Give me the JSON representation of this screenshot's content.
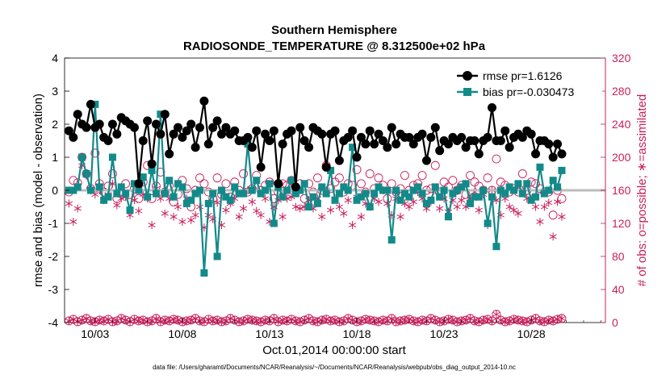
{
  "chart_data": {
    "type": "line",
    "title": "Southern Hemisphere",
    "subtitle": "RADIOSONDE_TEMPERATURE @ 8.312500e+02 hPa",
    "xlabel": "Oct.01,2014 00:00:00 start",
    "ylabel": "rmse and bias (model - observation)",
    "y2label": "# of obs: o=possible; ∗=assimilated",
    "footer": "data file: /Users/gharamti/Documents/NCAR/Reanalysis/~/Documents/NCAR/Reanalysis/webpub/obs_diag_output_2014-10.nc",
    "x_ticks": [
      "10/03",
      "10/08",
      "10/13",
      "10/18",
      "10/23",
      "10/28"
    ],
    "x_tick_days": [
      3,
      8,
      13,
      18,
      23,
      28
    ],
    "xlim": [
      1.25,
      32.25
    ],
    "ylim": [
      -4,
      4
    ],
    "y_ticks": [
      "4",
      "3",
      "2",
      "1",
      "0",
      "-1",
      "-2",
      "-3",
      "-4"
    ],
    "y2lim": [
      0,
      320
    ],
    "y2_ticks": [
      "320",
      "280",
      "240",
      "200",
      "160",
      "120",
      "80",
      "40",
      "0"
    ],
    "legend": [
      "rmse pr=1.6126",
      "bias pr=-0.030473"
    ],
    "legend_position": "top-right",
    "x_start": 1.5,
    "x_step": 0.25,
    "series": [
      {
        "name": "rmse pr=1.6126",
        "color": "#000000",
        "values": [
          1.8,
          1.6,
          2.3,
          2.0,
          1.9,
          2.6,
          1.9,
          2.0,
          1.6,
          1.5,
          2.0,
          1.7,
          2.2,
          2.1,
          2.0,
          1.9,
          0.2,
          1.5,
          2.1,
          0.8,
          2.0,
          1.7,
          2.3,
          1.1,
          1.7,
          1.9,
          1.6,
          1.8,
          2.0,
          1.3,
          1.9,
          2.7,
          1.4,
          1.9,
          2.1,
          1.7,
          1.9,
          1.7,
          1.8,
          1.5,
          1.5,
          1.6,
          1.3,
          1.8,
          0.7,
          1.7,
          1.5,
          1.8,
          0.2,
          1.4,
          1.7,
          1.8,
          0.1,
          1.9,
          1.5,
          1.3,
          1.9,
          1.8,
          1.7,
          0.7,
          1.7,
          1.8,
          0.9,
          1.5,
          1.6,
          1.8,
          1.0,
          1.6,
          1.4,
          1.8,
          1.4,
          1.7,
          1.5,
          1.3,
          1.9,
          1.4,
          1.7,
          1.6,
          1.6,
          1.4,
          1.6,
          1.7,
          0.9,
          1.6,
          1.9,
          1.2,
          1.5,
          1.4,
          1.6,
          1.5,
          1.6,
          1.3,
          1.5,
          1.5,
          1.1,
          1.5,
          1.6,
          2.5,
          1.5,
          1.5,
          1.8,
          1.3,
          1.6,
          1.7,
          1.6,
          1.8,
          1.7,
          1.1,
          1.5,
          1.5,
          1.4,
          1.0,
          1.4,
          1.1
        ]
      },
      {
        "name": "bias pr=-0.030473",
        "color": "#138a8a",
        "values": [
          0.0,
          0.0,
          0.1,
          1.0,
          0.5,
          0.0,
          2.6,
          0.1,
          -0.3,
          -0.2,
          1.0,
          -0.1,
          0.1,
          -0.1,
          -0.6,
          0.2,
          0.0,
          0.4,
          -0.2,
          0.6,
          -0.1,
          2.3,
          -0.1,
          0.3,
          -0.2,
          0.2,
          0.1,
          -0.4,
          -0.3,
          -0.1,
          0.0,
          -2.5,
          -0.4,
          -0.1,
          -2.0,
          0.0,
          -0.2,
          -0.3,
          0.1,
          -0.1,
          -0.1,
          1.4,
          0.0,
          0.3,
          -0.1,
          0.0,
          0.2,
          -1.0,
          0.1,
          -0.2,
          0.0,
          0.3,
          -0.1,
          0.0,
          0.2,
          -0.5,
          -0.2,
          -0.4,
          0.1,
          -0.1,
          0.6,
          -0.3,
          -0.1,
          0.1,
          0.0,
          1.3,
          -0.3,
          -0.2,
          -0.1,
          -0.5,
          -0.1,
          0.1,
          0.0,
          0.0,
          -1.5,
          0.0,
          -0.3,
          -0.1,
          -0.2,
          0.0,
          0.1,
          -0.1,
          -0.4,
          -0.3,
          0.1,
          -0.2,
          0.0,
          -0.8,
          -0.1,
          0.0,
          0.1,
          0.2,
          -0.4,
          -0.2,
          -0.2,
          0.0,
          -1.0,
          -0.2,
          -1.7,
          0.0,
          -0.1,
          0.1,
          0.0,
          0.2,
          -0.1,
          0.2,
          -0.3,
          -0.2,
          0.7,
          -0.1,
          0.0,
          0.3,
          0.1,
          0.6
        ]
      }
    ],
    "obs_possible": [
      158,
      172,
      169,
      200,
      180,
      162,
      205,
      168,
      158,
      165,
      180,
      150,
      158,
      168,
      155,
      162,
      150,
      170,
      190,
      150,
      165,
      182,
      158,
      166,
      146,
      155,
      172,
      162,
      140,
      160,
      175,
      168,
      158,
      150,
      175,
      155,
      168,
      152,
      170,
      160,
      180,
      158,
      162,
      178,
      160,
      166,
      170,
      150,
      158,
      168,
      166,
      172,
      160,
      168,
      150,
      168,
      158,
      175,
      160,
      190,
      162,
      170,
      175,
      158,
      168,
      166,
      185,
      168,
      158,
      180,
      162,
      175,
      166,
      150,
      168,
      158,
      162,
      178,
      160,
      166,
      168,
      178,
      160,
      162,
      190,
      158,
      170,
      164,
      172,
      160,
      166,
      155,
      178,
      170,
      165,
      160,
      175,
      160,
      198,
      170,
      166,
      158,
      162,
      158,
      180,
      160,
      170,
      168,
      162,
      158,
      158,
      130,
      160,
      150
    ],
    "obs_assimilated": [
      144,
      122,
      138,
      190,
      178,
      160,
      155,
      160,
      148,
      155,
      168,
      142,
      150,
      152,
      130,
      148,
      135,
      155,
      150,
      118,
      162,
      150,
      132,
      150,
      128,
      140,
      122,
      150,
      124,
      130,
      140,
      115,
      130,
      125,
      145,
      118,
      136,
      144,
      150,
      128,
      138,
      160,
      146,
      135,
      130,
      150,
      122,
      140,
      148,
      128,
      150,
      152,
      140,
      138,
      140,
      148,
      138,
      150,
      128,
      160,
      136,
      150,
      140,
      132,
      148,
      118,
      152,
      128,
      144,
      140,
      150,
      146,
      160,
      144,
      130,
      150,
      128,
      144,
      140,
      146,
      158,
      150,
      138,
      146,
      160,
      138,
      150,
      134,
      148,
      140,
      148,
      140,
      150,
      158,
      136,
      155,
      118,
      160,
      148,
      130,
      150,
      140,
      136,
      132,
      160,
      150,
      150,
      140,
      122,
      140,
      145,
      104,
      146,
      128
    ],
    "obs_bottom_possible": [
      2,
      4,
      1,
      3,
      5,
      2,
      1,
      3,
      2,
      4,
      1,
      2,
      5,
      3,
      1,
      4,
      2,
      3,
      1,
      2,
      5,
      1,
      3,
      2,
      4,
      3,
      1,
      2,
      3,
      5,
      2,
      1,
      4,
      2,
      3,
      1,
      2,
      5,
      3,
      1,
      2,
      4,
      3,
      2,
      1,
      3,
      2,
      5,
      1,
      3,
      2,
      4,
      2,
      1,
      3,
      5,
      2,
      1,
      3,
      4,
      2,
      3,
      1,
      2,
      5,
      3,
      1,
      2,
      4,
      3,
      2,
      1,
      3,
      2,
      5,
      1,
      2,
      3,
      4,
      2,
      1,
      3,
      2,
      5,
      3,
      1,
      2,
      4,
      3,
      1,
      2,
      3,
      5,
      2,
      1,
      3,
      4,
      2,
      10,
      3,
      1,
      2,
      4,
      3,
      2,
      1,
      3,
      5,
      2,
      1,
      3,
      2,
      4,
      5
    ],
    "obs_bottom_assimilated": [
      2,
      4,
      1,
      3,
      5,
      2,
      1,
      3,
      2,
      4,
      1,
      2,
      5,
      3,
      1,
      4,
      2,
      3,
      1,
      2,
      5,
      1,
      3,
      2,
      4,
      3,
      1,
      2,
      3,
      5,
      2,
      1,
      4,
      2,
      3,
      1,
      2,
      5,
      3,
      1,
      2,
      4,
      3,
      2,
      1,
      3,
      2,
      5,
      1,
      3,
      2,
      4,
      2,
      1,
      3,
      5,
      2,
      1,
      3,
      4,
      2,
      3,
      1,
      2,
      5,
      3,
      1,
      2,
      4,
      3,
      2,
      1,
      3,
      2,
      5,
      1,
      2,
      3,
      4,
      2,
      1,
      3,
      2,
      5,
      3,
      1,
      2,
      4,
      3,
      1,
      2,
      3,
      5,
      2,
      1,
      3,
      4,
      2,
      10,
      3,
      1,
      2,
      4,
      3,
      2,
      1,
      3,
      5,
      2,
      1,
      3,
      2,
      4,
      5
    ]
  },
  "colors": {
    "rmse": "#000000",
    "bias": "#138a8a",
    "obs": "#c81e5a",
    "zero_line": "#bcbcbc"
  }
}
